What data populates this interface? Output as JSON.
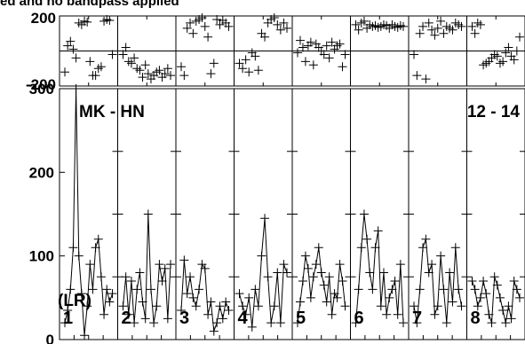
{
  "title": "ed and no bandpass applied",
  "chart_data": {
    "type": "scatter",
    "title": "ed and no bandpass applied",
    "baseline_label": "MK - HN",
    "ifs_label": "12 - 14",
    "polarization_label": "(LR)",
    "phase_panel": {
      "ylim": [
        -200,
        200
      ],
      "yticks": [
        "200",
        "-200"
      ]
    },
    "amplitude_panel": {
      "ylim": [
        0,
        300
      ],
      "yticks": [
        "300",
        "200",
        "100",
        "0"
      ]
    },
    "ifs": [
      {
        "label": "1",
        "phase": [
          -120,
          30,
          55,
          10,
          -40,
          160,
          150,
          170,
          165,
          -60,
          -140,
          -140,
          -100,
          -90,
          170,
          180,
          175,
          -20
        ],
        "amplitude": [
          20,
          35,
          60,
          110,
          300,
          100,
          55,
          5,
          40,
          90,
          60,
          110,
          120,
          75,
          30,
          60,
          45,
          55
        ]
      },
      {
        "label": "2",
        "phase": [
          -20,
          20,
          -60,
          -70,
          -40,
          -100,
          -110,
          -150,
          -80,
          -130,
          -160,
          -140,
          -120,
          -110,
          -150,
          -130,
          -100,
          -140
        ],
        "amplitude": [
          40,
          75,
          30,
          70,
          20,
          60,
          80,
          45,
          25,
          150,
          60,
          20,
          40,
          90,
          70,
          85,
          25,
          90
        ]
      },
      {
        "label": "3",
        "phase": [
          -90,
          -140,
          130,
          160,
          100,
          170,
          180,
          190,
          140,
          80,
          -130,
          -70,
          180,
          150,
          175,
          160,
          140
        ],
        "amplitude": [
          35,
          95,
          55,
          75,
          50,
          40,
          60,
          90,
          85,
          30,
          45,
          10,
          20,
          40,
          25,
          45,
          35
        ]
      },
      {
        "label": "4",
        "phase": [
          -70,
          -100,
          -50,
          -120,
          -10,
          -30,
          -110,
          100,
          80,
          160,
          180,
          190,
          150,
          120,
          160,
          130
        ],
        "amplitude": [
          55,
          40,
          30,
          50,
          15,
          60,
          40,
          100,
          145,
          75,
          20,
          40,
          80,
          20,
          90,
          80
        ]
      },
      {
        "label": "5",
        "phase": [
          -10,
          60,
          20,
          -60,
          30,
          50,
          -80,
          40,
          20,
          0,
          -20,
          30,
          -40,
          50,
          10,
          30,
          40,
          -90,
          -20
        ],
        "amplitude": [
          20,
          45,
          70,
          100,
          85,
          50,
          75,
          90,
          110,
          80,
          65,
          45,
          75,
          30,
          55,
          50,
          90,
          70,
          40
        ]
      },
      {
        "label": "6",
        "phase": [
          150,
          120,
          160,
          170,
          130,
          150,
          140,
          145,
          135,
          140,
          150,
          145,
          130,
          150,
          140,
          135,
          145,
          140
        ],
        "amplitude": [
          20,
          60,
          110,
          150,
          120,
          80,
          60,
          110,
          130,
          40,
          80,
          30,
          50,
          60,
          70,
          30,
          90,
          20
        ]
      },
      {
        "label": "7",
        "phase": [
          -20,
          -140,
          100,
          140,
          -160,
          160,
          120,
          90,
          130,
          170,
          100,
          140,
          130,
          120,
          160,
          150,
          140
        ],
        "amplitude": [
          40,
          20,
          60,
          110,
          120,
          80,
          90,
          30,
          40,
          100,
          60,
          20,
          80,
          45,
          110,
          60,
          40
        ]
      },
      {
        "label": "8",
        "phase": [
          140,
          100,
          160,
          150,
          -80,
          -70,
          -60,
          -40,
          -20,
          -30,
          -70,
          -60,
          -10,
          20,
          -30,
          -50,
          0,
          80
        ],
        "amplitude": [
          70,
          60,
          40,
          50,
          70,
          55,
          30,
          20,
          75,
          65,
          50,
          35,
          20,
          40,
          25,
          70,
          60,
          50
        ]
      }
    ]
  }
}
